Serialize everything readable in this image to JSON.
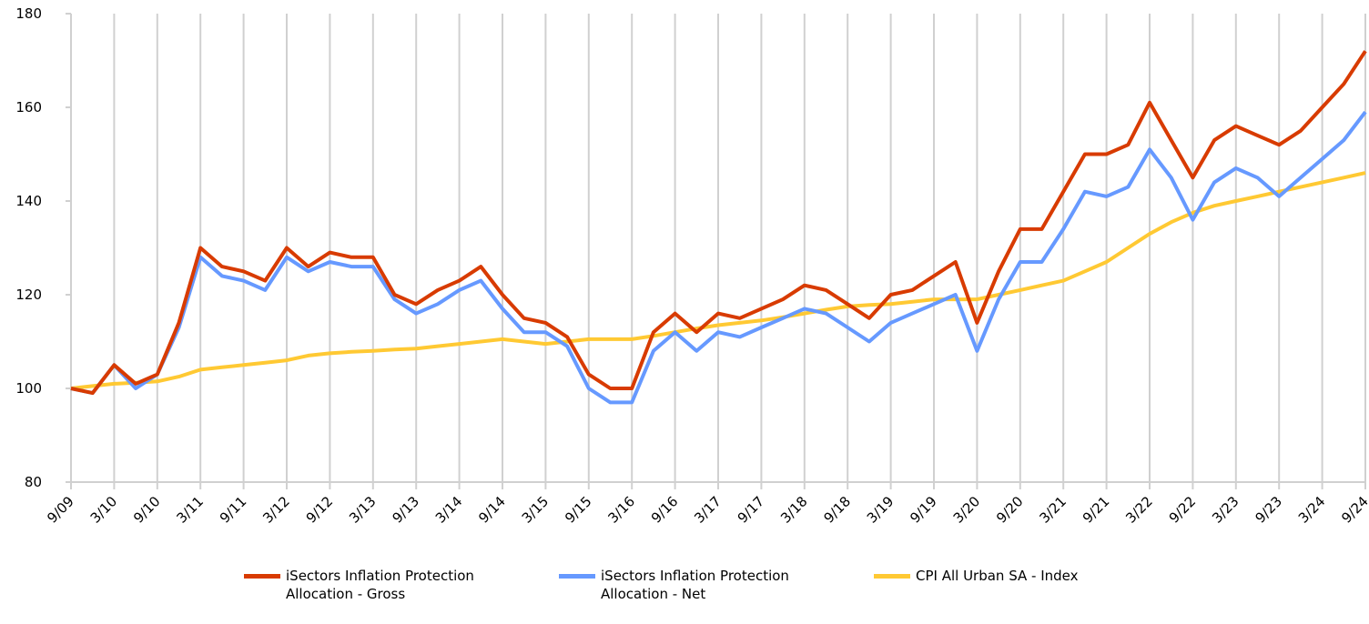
{
  "chart_data": {
    "type": "line",
    "categories": [
      "9/09",
      null,
      "3/10",
      null,
      "9/10",
      null,
      "3/11",
      null,
      "9/11",
      null,
      "3/12",
      null,
      "9/12",
      null,
      "3/13",
      null,
      "9/13",
      null,
      "3/14",
      null,
      "9/14",
      null,
      "3/15",
      null,
      "9/15",
      null,
      "3/16",
      null,
      "9/16",
      null,
      "3/17",
      null,
      "9/17",
      null,
      "3/18",
      null,
      "9/18",
      null,
      "3/19",
      null,
      "9/19",
      null,
      "3/20",
      null,
      "9/20",
      null,
      "3/21",
      null,
      "9/21",
      null,
      "3/22",
      null,
      "9/22",
      null,
      "3/23",
      null,
      "9/23",
      null,
      "3/24",
      null,
      "9/24"
    ],
    "series": [
      {
        "name": "iSectors Inflation Protection Allocation - Gross",
        "color": "#d83b01",
        "values": [
          100,
          99,
          105,
          101,
          103,
          114,
          130,
          126,
          125,
          123,
          130,
          126,
          129,
          128,
          128,
          120,
          118,
          121,
          123,
          126,
          120,
          115,
          114,
          111,
          103,
          100,
          100,
          112,
          116,
          112,
          116,
          115,
          117,
          119,
          122,
          121,
          118,
          115,
          120,
          121,
          124,
          127,
          114,
          125,
          134,
          134,
          142,
          150,
          150,
          152,
          161,
          153,
          145,
          153,
          156,
          154,
          152,
          155,
          160,
          165,
          172
        ]
      },
      {
        "name": "iSectors Inflation Protection Allocation - Net",
        "color": "#6699ff",
        "values": [
          100,
          99,
          105,
          100,
          103,
          113,
          128,
          124,
          123,
          121,
          128,
          125,
          127,
          126,
          126,
          119,
          116,
          118,
          121,
          123,
          117,
          112,
          112,
          109,
          100,
          97,
          97,
          108,
          112,
          108,
          112,
          111,
          113,
          115,
          117,
          116,
          113,
          110,
          114,
          116,
          118,
          120,
          108,
          119,
          127,
          127,
          134,
          142,
          141,
          143,
          151,
          145,
          136,
          144,
          147,
          145,
          141,
          145,
          149,
          153,
          159
        ]
      },
      {
        "name": "CPI All Urban SA - Index",
        "color": "#ffc933",
        "values": [
          100,
          100.5,
          101,
          101.2,
          101.5,
          102.5,
          104,
          104.5,
          105,
          105.5,
          106,
          107,
          107.5,
          107.8,
          108,
          108.3,
          108.5,
          109,
          109.5,
          110,
          110.5,
          110,
          109.5,
          110,
          110.5,
          110.5,
          110.5,
          111.2,
          112,
          112.8,
          113.5,
          114,
          114.5,
          115.2,
          116,
          116.8,
          117.5,
          117.8,
          118,
          118.5,
          119,
          119,
          119,
          120,
          121,
          122,
          123,
          125,
          127,
          130,
          133,
          135.5,
          137.5,
          139,
          140,
          141,
          142,
          143,
          144,
          145,
          146
        ]
      }
    ],
    "ylim": [
      80,
      180
    ],
    "yticks": [
      80,
      100,
      120,
      140,
      160,
      180
    ],
    "xgrid": true,
    "ygrid": false,
    "legend": "bottom"
  }
}
